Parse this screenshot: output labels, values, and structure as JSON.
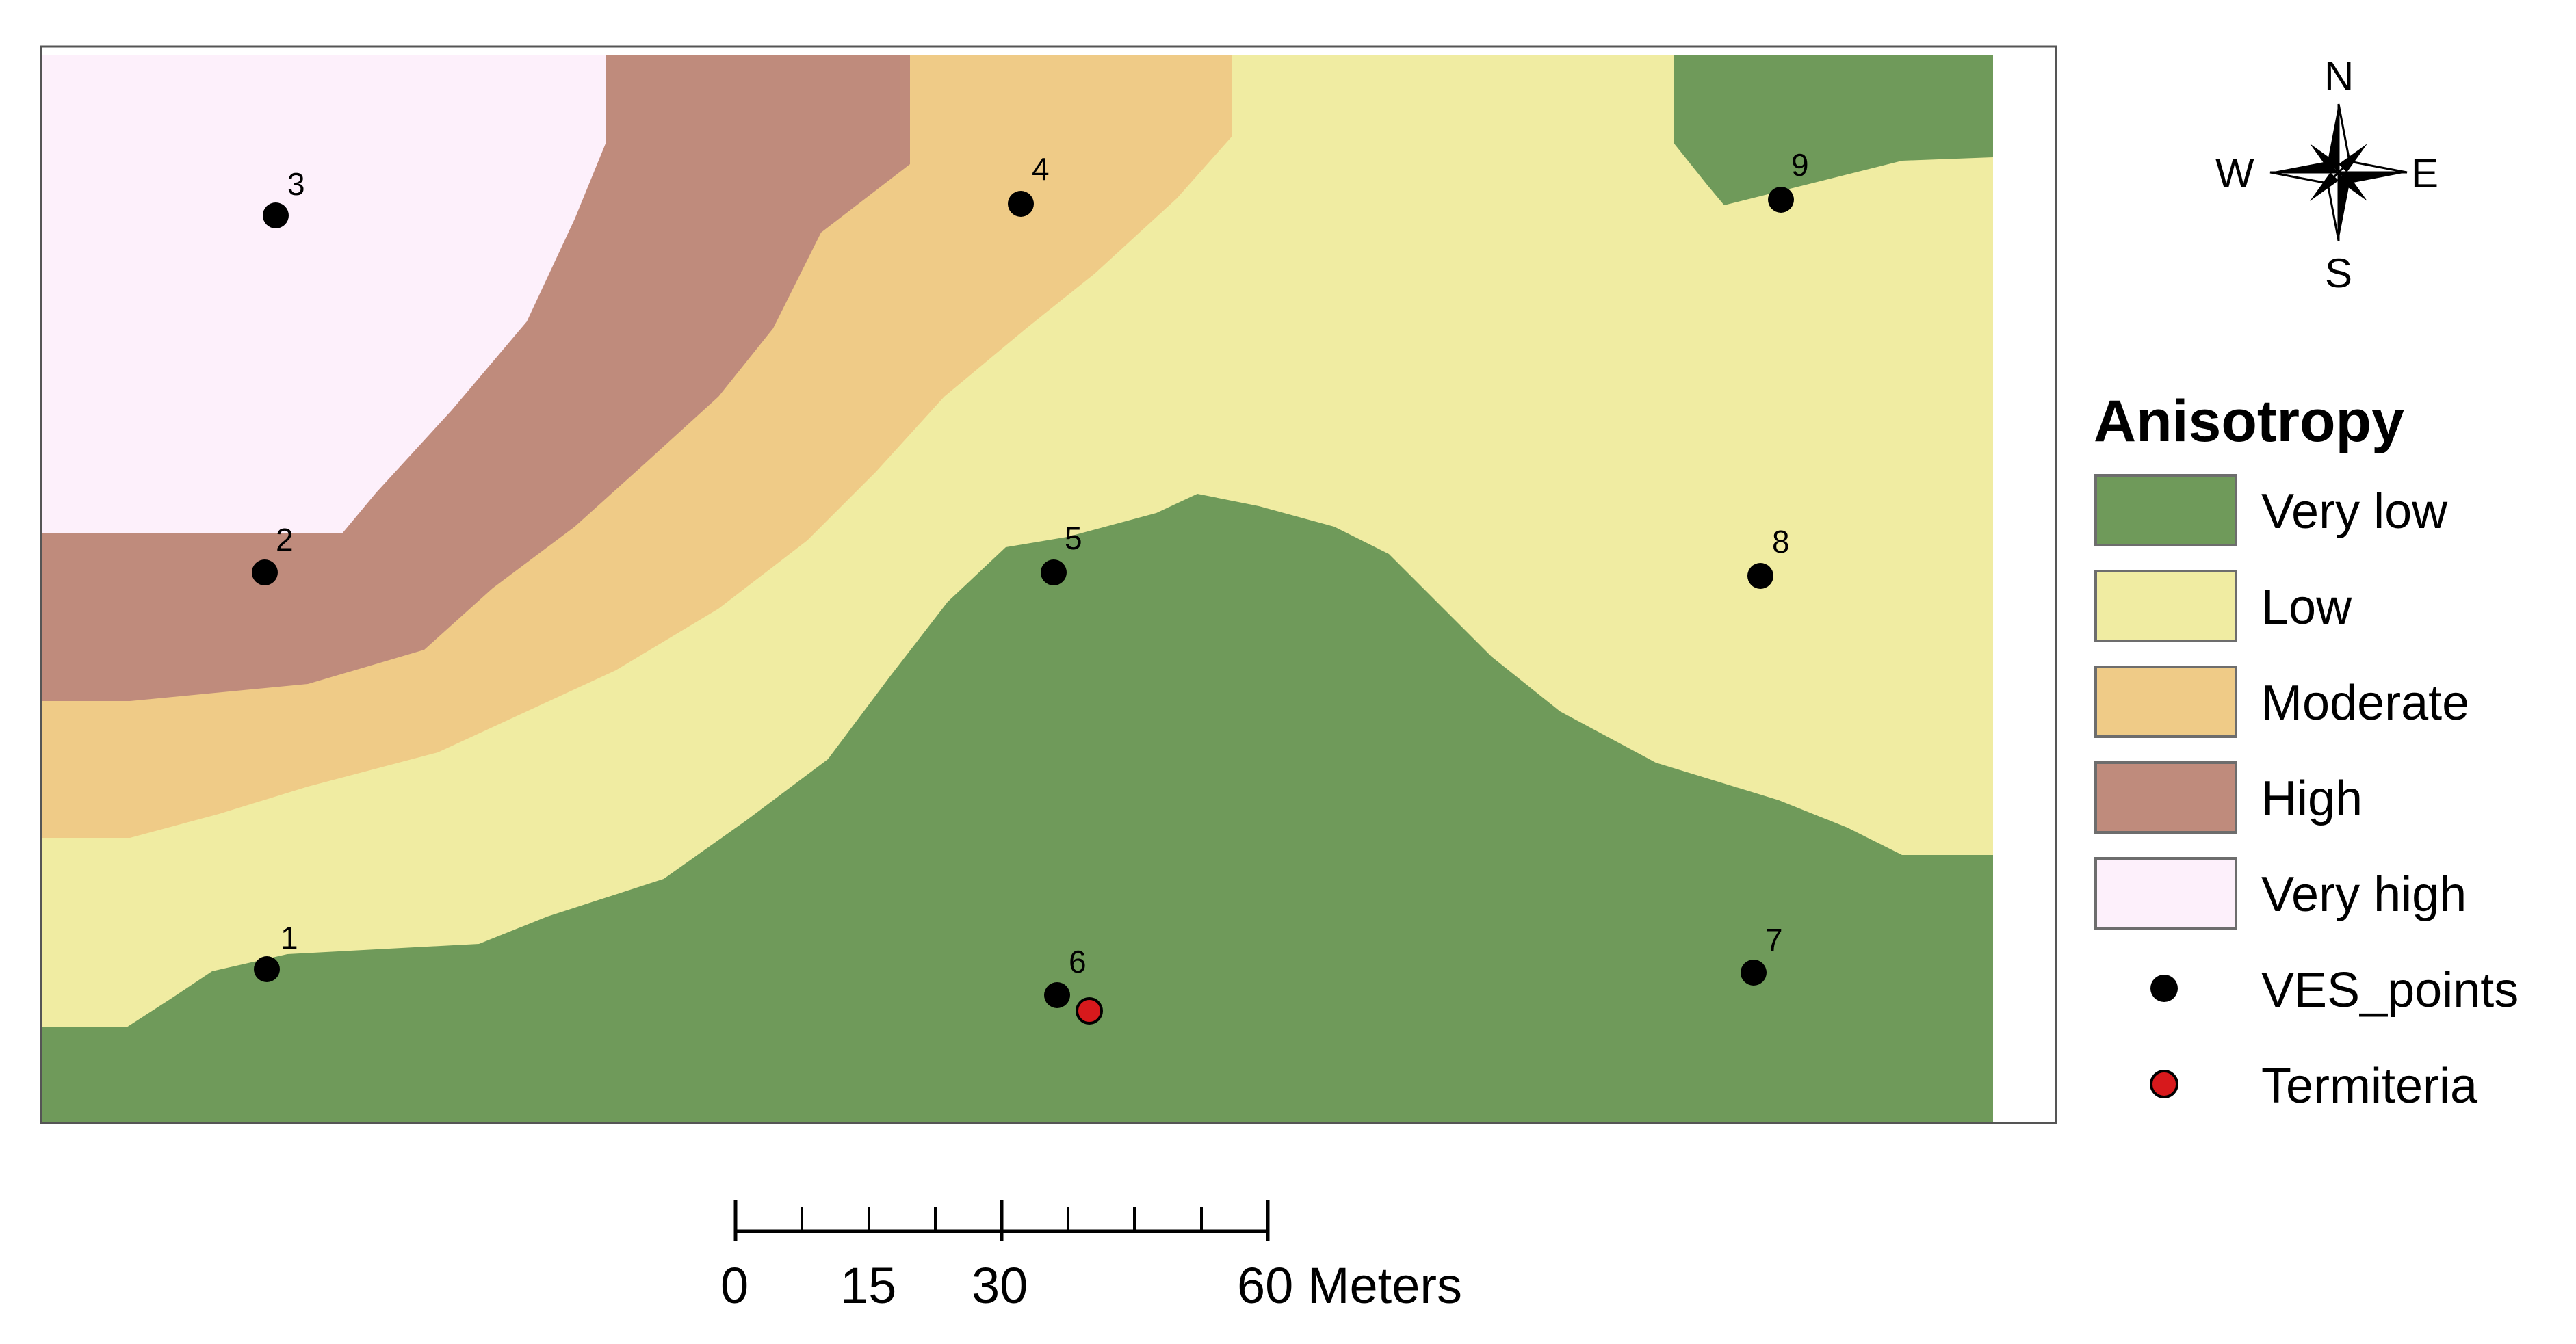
{
  "map": {
    "zones": [
      {
        "class": "Very low",
        "color": "#6f9a5a"
      },
      {
        "class": "Low",
        "color": "#f0eca2"
      },
      {
        "class": "Moderate",
        "color": "#efcb87"
      },
      {
        "class": "High",
        "color": "#bf8b7c"
      },
      {
        "class": "Very high",
        "color": "#fdf0fb"
      }
    ],
    "points": [
      {
        "id": "1",
        "label": "1"
      },
      {
        "id": "2",
        "label": "2"
      },
      {
        "id": "3",
        "label": "3"
      },
      {
        "id": "4",
        "label": "4"
      },
      {
        "id": "5",
        "label": "5"
      },
      {
        "id": "6",
        "label": "6"
      },
      {
        "id": "7",
        "label": "7"
      },
      {
        "id": "8",
        "label": "8"
      },
      {
        "id": "9",
        "label": "9"
      }
    ],
    "termiteria_color": "#d7191c",
    "ves_color": "#000000"
  },
  "compass": {
    "north": "N",
    "south": "S",
    "east": "E",
    "west": "W"
  },
  "legend": {
    "title": "Anisotropy",
    "items": [
      {
        "label": "Very low",
        "color": "#6f9a5a"
      },
      {
        "label": "Low",
        "color": "#f0eca2"
      },
      {
        "label": "Moderate",
        "color": "#efcb87"
      },
      {
        "label": "High",
        "color": "#bf8b7c"
      },
      {
        "label": "Very high",
        "color": "#fdf0fb"
      }
    ],
    "ves_label": "VES_points",
    "termiteria_label": "Termiteria"
  },
  "scale_bar": {
    "labels": [
      "0",
      "15",
      "30",
      "60 Meters"
    ]
  }
}
